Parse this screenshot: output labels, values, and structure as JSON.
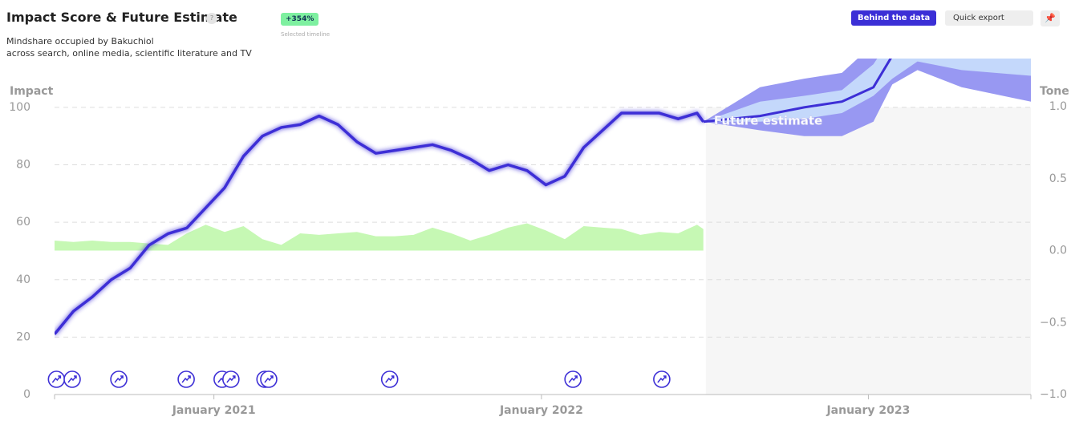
{
  "header": {
    "title": "Impact Score & Future Estimate",
    "help": "?",
    "subtitle_lines": [
      "Mindshare occupied by Bakuchiol",
      "across search, online media, scientific literature and TV"
    ],
    "badge": "+354%",
    "badge_caption": "Selected timeline",
    "buttons": [
      "Behind the data",
      "Quick export"
    ]
  },
  "chart_data": {
    "type": "line",
    "ylabel": "Impact",
    "y2label": "Tone",
    "x": [
      0,
      3,
      6,
      9,
      12,
      15,
      18,
      21,
      24,
      27,
      30,
      33,
      36,
      39,
      42,
      45,
      48,
      51,
      54,
      57,
      60,
      63,
      66,
      69,
      72,
      75,
      78,
      81,
      84,
      87,
      90,
      93,
      96,
      99,
      102,
      103
    ],
    "series": [
      {
        "color": "#3d2fd6",
        "values": [
          21,
          29,
          34,
          40,
          44,
          52,
          56,
          58,
          65,
          72,
          83,
          90,
          93,
          94,
          97,
          94,
          88,
          84,
          85,
          86,
          87,
          85,
          82,
          78,
          80,
          78,
          73,
          76,
          86,
          92,
          98,
          98,
          98,
          96,
          98,
          95
        ]
      },
      {
        "color": "#c6f8b4",
        "axis": "y2",
        "values": [
          0.07,
          0.06,
          0.07,
          0.06,
          0.06,
          0.05,
          0.04,
          0.12,
          0.18,
          0.13,
          0.17,
          0.08,
          0.04,
          0.12,
          0.11,
          0.12,
          0.13,
          0.1,
          0.1,
          0.11,
          0.16,
          0.12,
          0.07,
          0.11,
          0.16,
          0.19,
          0.14,
          0.08,
          0.17,
          0.16,
          0.15,
          0.11,
          0.13,
          0.12,
          0.18,
          0.15
        ]
      }
    ],
    "forecast": {
      "label": "Future estimate",
      "start": 103.4,
      "x": [
        103,
        112,
        119,
        125,
        130,
        133,
        137,
        144,
        155
      ],
      "median": [
        95,
        97,
        100,
        102,
        107,
        118,
        125,
        128,
        128
      ],
      "inner_low": [
        95,
        95,
        96,
        98,
        104,
        110,
        116,
        113,
        111
      ],
      "inner_high": [
        95,
        102,
        104,
        106,
        115,
        125,
        135,
        140,
        140
      ],
      "outer_low": [
        95,
        92,
        90,
        90,
        95,
        108,
        113,
        107,
        102
      ],
      "outer_high": [
        95,
        107,
        110,
        112,
        122,
        135,
        145,
        150,
        150
      ],
      "colors": {
        "median": "#3d2fd6",
        "inner": "#c4d8fb",
        "outer": "#9898f2"
      }
    },
    "events": [
      0.3,
      2.8,
      10.2,
      20.9,
      26.6,
      28,
      33.4,
      34,
      53.2,
      82.3,
      96.4
    ],
    "xlim": [
      0,
      155
    ],
    "xticks": [
      {
        "value": 25.3,
        "label": "January 2021"
      },
      {
        "value": 77.3,
        "label": "January 2022"
      },
      {
        "value": 129.2,
        "label": "January 2023"
      }
    ],
    "ylim": [
      0,
      117
    ],
    "yticks": [
      0,
      20,
      40,
      60,
      80,
      100
    ],
    "y2lim": [
      -1.0,
      1.335
    ],
    "y2ticks": [
      {
        "value": 1.0,
        "label": "1.0"
      },
      0.5,
      {
        "value": 0.0,
        "label": "0.0"
      },
      {
        "value": -0.5,
        "label": "−0.5"
      },
      {
        "value": -1.0,
        "label": "−1.0"
      }
    ],
    "grid": true
  }
}
